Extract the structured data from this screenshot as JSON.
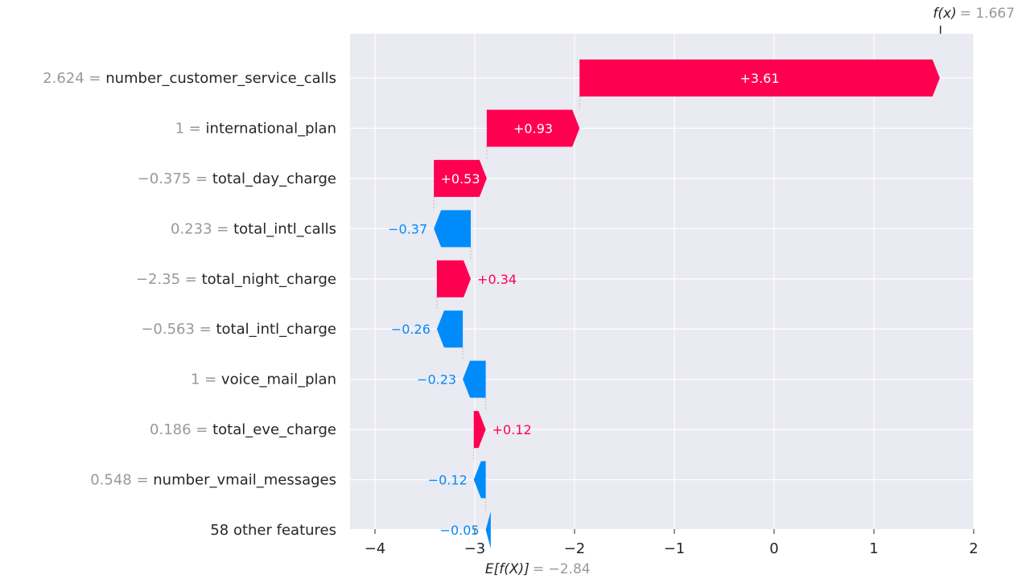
{
  "chart_data": {
    "type": "waterfall",
    "fx": {
      "symbol": "f(x)",
      "value_text": "= 1.667",
      "value": 1.667
    },
    "efx": {
      "symbol": "E[f(X)]",
      "value_text": "= −2.84",
      "value": -2.84
    },
    "xlim": [
      -4.25,
      2
    ],
    "xticks": [
      {
        "value": -4,
        "label": "−4"
      },
      {
        "value": -3,
        "label": "−3"
      },
      {
        "value": -2,
        "label": "−2"
      },
      {
        "value": -1,
        "label": "−1"
      },
      {
        "value": 0,
        "label": "0"
      },
      {
        "value": 1,
        "label": "1"
      },
      {
        "value": 2,
        "label": "2"
      }
    ],
    "grid": true,
    "features": [
      {
        "value_label": "2.624",
        "name": "number_customer_service_calls",
        "contribution": 3.61,
        "label": "+3.61"
      },
      {
        "value_label": "1",
        "name": "international_plan",
        "contribution": 0.93,
        "label": "+0.93"
      },
      {
        "value_label": "−0.375",
        "name": "total_day_charge",
        "contribution": 0.53,
        "label": "+0.53"
      },
      {
        "value_label": "0.233",
        "name": "total_intl_calls",
        "contribution": -0.37,
        "label": "−0.37"
      },
      {
        "value_label": "−2.35",
        "name": "total_night_charge",
        "contribution": 0.34,
        "label": "+0.34"
      },
      {
        "value_label": "−0.563",
        "name": "total_intl_charge",
        "contribution": -0.26,
        "label": "−0.26"
      },
      {
        "value_label": "1",
        "name": "voice_mail_plan",
        "contribution": -0.23,
        "label": "−0.23"
      },
      {
        "value_label": "0.186",
        "name": "total_eve_charge",
        "contribution": 0.12,
        "label": "+0.12"
      },
      {
        "value_label": "0.548",
        "name": "number_vmail_messages",
        "contribution": -0.12,
        "label": "−0.12"
      },
      {
        "value_label": "",
        "name": "58 other features",
        "contribution": -0.05,
        "label": "−0.05"
      }
    ],
    "colors": {
      "positive": "#ff0051",
      "negative": "#008bfb",
      "background": "#eaeaf2",
      "grid": "#ffffff",
      "value_text": "#999999",
      "name_text": "#262626",
      "tick_text": "#262626"
    }
  }
}
